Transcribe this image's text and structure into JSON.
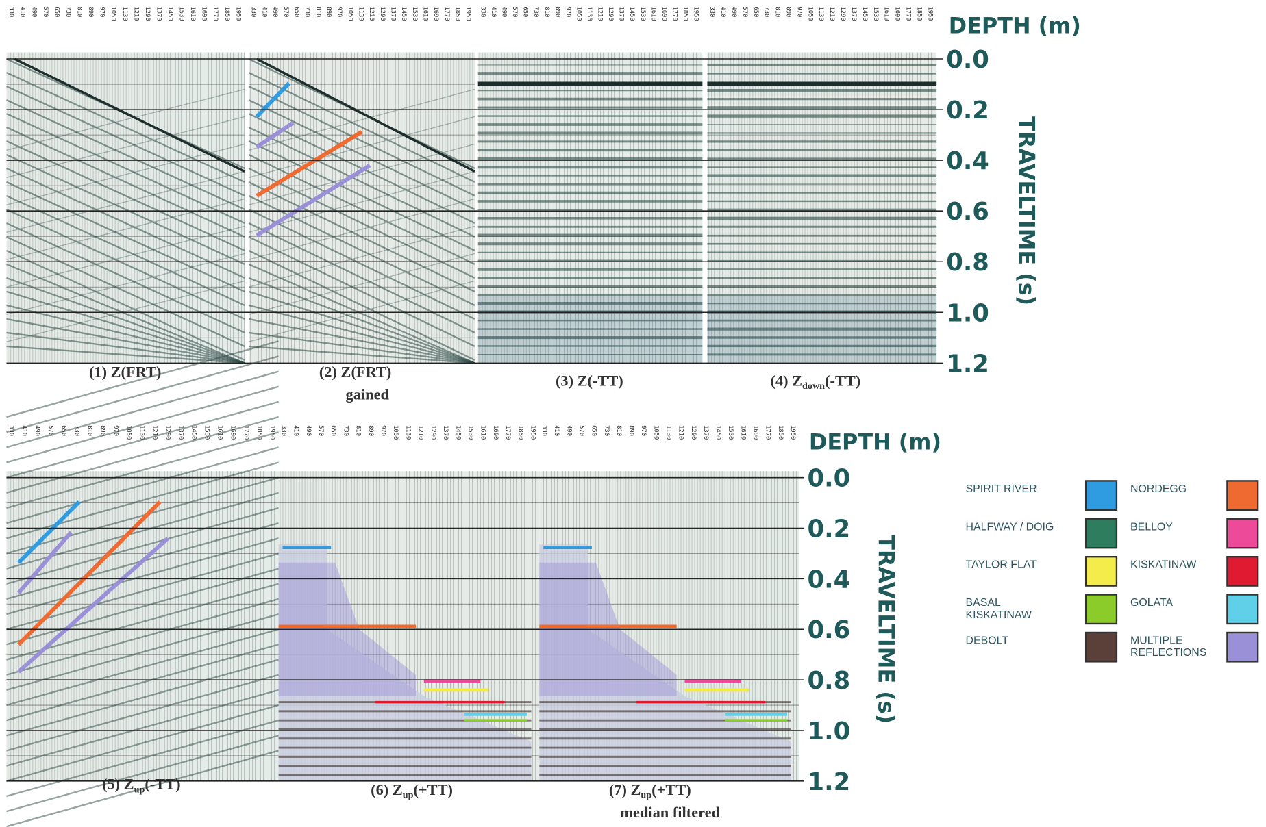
{
  "depth_labels": [
    "330",
    "410",
    "490",
    "570",
    "650",
    "730",
    "810",
    "890",
    "970",
    "1050",
    "1130",
    "1210",
    "1290",
    "1370",
    "1450",
    "1530",
    "1610",
    "1690",
    "1770",
    "1850",
    "1950"
  ],
  "time_labels": [
    "0.0",
    "0.2",
    "0.4",
    "0.6",
    "0.8",
    "1.0",
    "1.2"
  ],
  "depth_title": "DEPTH (m)",
  "time_title": "TRAVELTIME (s)",
  "panels": [
    {
      "caption": "(1) Z(FRT)"
    },
    {
      "caption": "(2)  Z(FRT)",
      "note": "gained"
    },
    {
      "caption": "(3) Z(-TT)"
    },
    {
      "caption": "(4) Z",
      "subscript": "down",
      "suffix": "(-TT)"
    },
    {
      "caption": "(5) Z",
      "subscript": "up",
      "suffix": "(-TT)"
    },
    {
      "caption": "(6) Z",
      "subscript": "up",
      "suffix": "(+TT)"
    },
    {
      "caption": "(7) Z",
      "subscript": "up",
      "suffix": "(+TT)",
      "note": "median filtered"
    }
  ],
  "legend": [
    {
      "label": "SPIRIT RIVER",
      "color": "#2f9be0"
    },
    {
      "label": "HALFWAY / DOIG",
      "color": "#2e7d5e"
    },
    {
      "label": "TAYLOR FLAT",
      "color": "#f3ec4a"
    },
    {
      "label": "BASAL KISKATINAW",
      "color": "#8ccc2a"
    },
    {
      "label": "DEBOLT",
      "color": "#5a4038"
    },
    {
      "label": "NORDEGG",
      "color": "#ee6a30"
    },
    {
      "label": "BELLOY",
      "color": "#ee4a9a"
    },
    {
      "label": "KISKATINAW",
      "color": "#e01a30"
    },
    {
      "label": "GOLATA",
      "color": "#60d0e8"
    },
    {
      "label": "MULTIPLE REFLECTIONS",
      "color": "#9a90d8"
    }
  ]
}
